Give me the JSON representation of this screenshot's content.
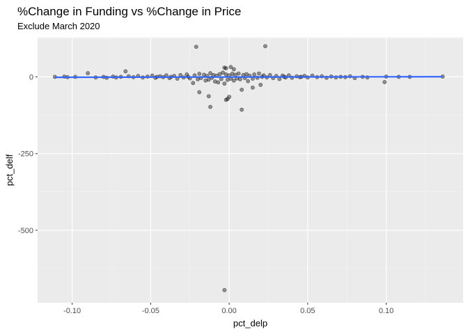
{
  "chart_data": {
    "type": "scatter",
    "title": "%Change in Funding vs %Change in Price",
    "subtitle": "Exclude March 2020",
    "xlabel": "pct_delp",
    "ylabel": "pct_delf",
    "xlim": [
      -0.122,
      0.149
    ],
    "ylim": [
      -736,
      128
    ],
    "x_ticks": [
      -0.1,
      -0.05,
      0.0,
      0.05,
      0.1
    ],
    "x_tick_labels": [
      "-0.10",
      "-0.05",
      "0.00",
      "0.05",
      "0.10"
    ],
    "y_ticks": [
      0,
      -250,
      -500
    ],
    "y_tick_labels": [
      "0",
      "-250",
      "-500"
    ],
    "grid": true,
    "point_color": "#000000",
    "point_opacity": 0.4,
    "trend_color": "#3366FF",
    "trend_line": {
      "x": [
        -0.111,
        0.136
      ],
      "y": [
        -1.5,
        0.5
      ]
    },
    "points": [
      {
        "x": -0.111,
        "y": 0
      },
      {
        "x": -0.105,
        "y": 1
      },
      {
        "x": -0.103,
        "y": -1
      },
      {
        "x": -0.098,
        "y": 0
      },
      {
        "x": -0.09,
        "y": 12
      },
      {
        "x": -0.085,
        "y": -2
      },
      {
        "x": -0.08,
        "y": 0
      },
      {
        "x": -0.078,
        "y": -3
      },
      {
        "x": -0.074,
        "y": 1
      },
      {
        "x": -0.072,
        "y": -2
      },
      {
        "x": -0.069,
        "y": 0
      },
      {
        "x": -0.066,
        "y": 18
      },
      {
        "x": -0.064,
        "y": 2
      },
      {
        "x": -0.061,
        "y": -1
      },
      {
        "x": -0.058,
        "y": 3
      },
      {
        "x": -0.055,
        "y": -2
      },
      {
        "x": -0.052,
        "y": 1
      },
      {
        "x": -0.049,
        "y": 4
      },
      {
        "x": -0.047,
        "y": -3
      },
      {
        "x": -0.044,
        "y": 2
      },
      {
        "x": -0.042,
        "y": -1
      },
      {
        "x": -0.04,
        "y": 5
      },
      {
        "x": -0.038,
        "y": -4
      },
      {
        "x": -0.035,
        "y": 3
      },
      {
        "x": -0.033,
        "y": -6
      },
      {
        "x": -0.031,
        "y": 6
      },
      {
        "x": -0.029,
        "y": -2
      },
      {
        "x": -0.027,
        "y": 8
      },
      {
        "x": -0.025,
        "y": -5
      },
      {
        "x": -0.023,
        "y": -20
      },
      {
        "x": -0.022,
        "y": 5
      },
      {
        "x": -0.021,
        "y": 98
      },
      {
        "x": -0.02,
        "y": -8
      },
      {
        "x": -0.019,
        "y": 10
      },
      {
        "x": -0.018,
        "y": -4
      },
      {
        "x": -0.016,
        "y": 7
      },
      {
        "x": -0.015,
        "y": -12
      },
      {
        "x": -0.014,
        "y": 3
      },
      {
        "x": -0.013,
        "y": -9
      },
      {
        "x": -0.012,
        "y": 12
      },
      {
        "x": -0.011,
        "y": -3
      },
      {
        "x": -0.01,
        "y": 6
      },
      {
        "x": -0.009,
        "y": -15
      },
      {
        "x": -0.008,
        "y": 4
      },
      {
        "x": -0.007,
        "y": -18
      },
      {
        "x": -0.006,
        "y": 9
      },
      {
        "x": -0.005,
        "y": -7
      },
      {
        "x": -0.004,
        "y": 14
      },
      {
        "x": -0.003,
        "y": -22
      },
      {
        "x": -0.003,
        "y": -695
      },
      {
        "x": -0.002,
        "y": 8
      },
      {
        "x": -0.001,
        "y": -10
      },
      {
        "x": 0.0,
        "y": 5
      },
      {
        "x": 0.001,
        "y": -6
      },
      {
        "x": 0.002,
        "y": 10
      },
      {
        "x": 0.003,
        "y": -12
      },
      {
        "x": 0.004,
        "y": 7
      },
      {
        "x": 0.005,
        "y": -5
      },
      {
        "x": 0.006,
        "y": 11
      },
      {
        "x": 0.007,
        "y": -8
      },
      {
        "x": 0.008,
        "y": -107
      },
      {
        "x": 0.009,
        "y": 6
      },
      {
        "x": 0.01,
        "y": -4
      },
      {
        "x": 0.011,
        "y": 9
      },
      {
        "x": 0.012,
        "y": -14
      },
      {
        "x": 0.013,
        "y": 4
      },
      {
        "x": 0.015,
        "y": -6
      },
      {
        "x": 0.016,
        "y": 8
      },
      {
        "x": 0.018,
        "y": -3
      },
      {
        "x": 0.019,
        "y": 11
      },
      {
        "x": 0.02,
        "y": -26
      },
      {
        "x": 0.022,
        "y": 5
      },
      {
        "x": 0.023,
        "y": 100
      },
      {
        "x": 0.024,
        "y": -2
      },
      {
        "x": 0.026,
        "y": 6
      },
      {
        "x": 0.028,
        "y": -4
      },
      {
        "x": 0.03,
        "y": 3
      },
      {
        "x": 0.032,
        "y": -7
      },
      {
        "x": 0.034,
        "y": 4
      },
      {
        "x": 0.036,
        "y": -2
      },
      {
        "x": 0.038,
        "y": 5
      },
      {
        "x": 0.04,
        "y": -3
      },
      {
        "x": 0.043,
        "y": 2
      },
      {
        "x": 0.045,
        "y": -1
      },
      {
        "x": 0.048,
        "y": 3
      },
      {
        "x": 0.05,
        "y": -2
      },
      {
        "x": 0.053,
        "y": 4
      },
      {
        "x": 0.056,
        "y": -1
      },
      {
        "x": 0.059,
        "y": 2
      },
      {
        "x": 0.062,
        "y": -3
      },
      {
        "x": 0.065,
        "y": 1
      },
      {
        "x": 0.068,
        "y": -2
      },
      {
        "x": 0.071,
        "y": 0
      },
      {
        "x": 0.074,
        "y": -1
      },
      {
        "x": 0.077,
        "y": 2
      },
      {
        "x": 0.08,
        "y": -4
      },
      {
        "x": 0.085,
        "y": 0
      },
      {
        "x": 0.088,
        "y": -2
      },
      {
        "x": 0.099,
        "y": -17
      },
      {
        "x": 0.1,
        "y": 1
      },
      {
        "x": 0.108,
        "y": 0
      },
      {
        "x": 0.115,
        "y": 0
      },
      {
        "x": 0.136,
        "y": 1
      },
      {
        "x": -0.019,
        "y": -50
      },
      {
        "x": -0.013,
        "y": -63
      },
      {
        "x": -0.012,
        "y": -98
      },
      {
        "x": -0.002,
        "y": -75
      },
      {
        "x": -0.001,
        "y": -72
      },
      {
        "x": 0.0,
        "y": -65
      },
      {
        "x": -0.003,
        "y": 30
      },
      {
        "x": -0.002,
        "y": 28
      },
      {
        "x": 0.001,
        "y": 32
      },
      {
        "x": 0.003,
        "y": 25
      },
      {
        "x": 0.015,
        "y": -35
      },
      {
        "x": 0.008,
        "y": -42
      },
      {
        "x": -0.026,
        "y": 0
      },
      {
        "x": 0.021,
        "y": 0
      },
      {
        "x": -0.037,
        "y": 0
      },
      {
        "x": 0.035,
        "y": 0
      },
      {
        "x": -0.046,
        "y": 0
      },
      {
        "x": 0.046,
        "y": 0
      }
    ]
  }
}
